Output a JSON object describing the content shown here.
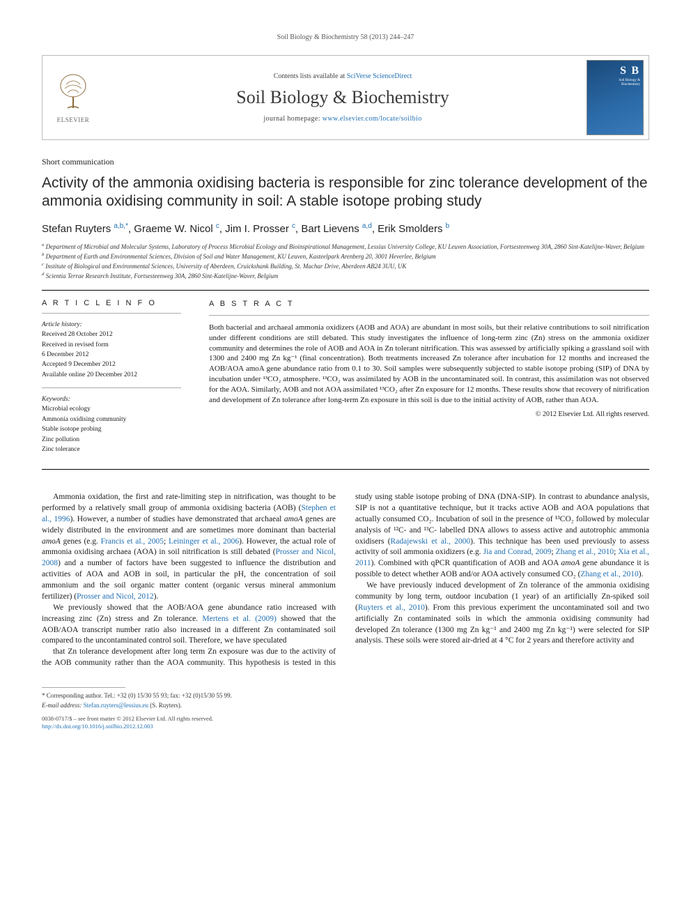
{
  "running_head": "Soil Biology & Biochemistry 58 (2013) 244–247",
  "masthead": {
    "publisher_label": "ELSEVIER",
    "contents_prefix": "Contents lists available at ",
    "contents_link": "SciVerse ScienceDirect",
    "journal_name": "Soil Biology & Biochemistry",
    "homepage_prefix": "journal homepage: ",
    "homepage_link": "www.elsevier.com/locate/soilbio",
    "cover": {
      "s1": "S",
      "s2": "B",
      "label1": "Soil Biology &",
      "label2": "Biochemistry"
    }
  },
  "section_label": "Short communication",
  "title": "Activity of the ammonia oxidising bacteria is responsible for zinc tolerance development of the ammonia oxidising community in soil: A stable isotope probing study",
  "authors_html": "Stefan Ruyters <sup class='aff'>a,b,*</sup>, Graeme W. Nicol <sup class='aff'>c</sup>, Jim I. Prosser <sup class='aff'>c</sup>, Bart Lievens <sup class='aff'>a,d</sup>, Erik Smolders <sup class='aff'>b</sup>",
  "affiliations": [
    "a Department of Microbial and Molecular Systems, Laboratory of Process Microbial Ecology and Bioinspirational Management, Lessius University College, KU Leuven Association, Fortsesteenweg 30A, 2860 Sint-Katelijne-Waver, Belgium",
    "b Department of Earth and Environmental Sciences, Division of Soil and Water Management, KU Leuven, Kasteelpark Arenberg 20, 3001 Heverlee, Belgium",
    "c Institute of Biological and Environmental Sciences, University of Aberdeen, Cruickshank Building, St. Machar Drive, Aberdeen AB24 3UU, UK",
    "d Scientia Terrae Research Institute, Fortsesteenweg 30A, 2860 Sint-Katelijne-Waver, Belgium"
  ],
  "article_info": {
    "heading": "A R T I C L E  I N F O",
    "history_label": "Article history:",
    "history": [
      "Received 28 October 2012",
      "Received in revised form",
      "6 December 2012",
      "Accepted 9 December 2012",
      "Available online 20 December 2012"
    ],
    "keywords_label": "Keywords:",
    "keywords": [
      "Microbial ecology",
      "Ammonia oxidising community",
      "Stable isotope probing",
      "Zinc pollution",
      "Zinc tolerance"
    ]
  },
  "abstract": {
    "heading": "A B S T R A C T",
    "text": "Both bacterial and archaeal ammonia oxidizers (AOB and AOA) are abundant in most soils, but their relative contributions to soil nitrification under different conditions are still debated. This study investigates the influence of long-term zinc (Zn) stress on the ammonia oxidizer community and determines the role of AOB and AOA in Zn tolerant nitrification. This was assessed by artificially spiking a grassland soil with 1300 and 2400 mg Zn kg⁻¹ (final concentration). Both treatments increased Zn tolerance after incubation for 12 months and increased the AOB/AOA amoA gene abundance ratio from 0.1 to 30. Soil samples were subsequently subjected to stable isotope probing (SIP) of DNA by incubation under ¹³CO₂ atmosphere. ¹³CO₂ was assimilated by AOB in the uncontaminated soil. In contrast, this assimilation was not observed for the AOA. Similarly, AOB and not AOA assimilated ¹³CO₂ after Zn exposure for 12 months. These results show that recovery of nitrification and development of Zn tolerance after long-term Zn exposure in this soil is due to the initial activity of AOB, rather than AOA.",
    "copyright": "© 2012 Elsevier Ltd. All rights reserved."
  },
  "body": {
    "p1": "Ammonia oxidation, the first and rate-limiting step in nitrification, was thought to be performed by a relatively small group of ammonia oxidising bacteria (AOB) (<span class='cite'>Stephen et al., 1996</span>). However, a number of studies have demonstrated that archaeal <i>amoA</i> genes are widely distributed in the environment and are sometimes more dominant than bacterial <i>amoA</i> genes (e.g. <span class='cite'>Francis et al., 2005</span>; <span class='cite'>Leininger et al., 2006</span>). However, the actual role of ammonia oxidising archaea (AOA) in soil nitrification is still debated (<span class='cite'>Prosser and Nicol, 2008</span>) and a number of factors have been suggested to influence the distribution and activities of AOA and AOB in soil, in particular the pH, the concentration of soil ammonium and the soil organic matter content (organic versus mineral ammonium fertilizer) (<span class='cite'>Prosser and Nicol, 2012</span>).",
    "p2": "We previously showed that the AOB/AOA gene abundance ratio increased with increasing zinc (Zn) stress and Zn tolerance. <span class='cite'>Mertens et al. (2009)</span> showed that the AOB/AOA transcript number ratio also increased in a different Zn contaminated soil compared to the uncontaminated control soil. Therefore, we have speculated",
    "p3": "that Zn tolerance development after long term Zn exposure was due to the activity of the AOB community rather than the AOA community. This hypothesis is tested in this study using stable isotope probing of DNA (DNA-SIP). In contrast to abundance analysis, SIP is not a quantitative technique, but it tracks active AOB and AOA populations that actually consumed CO₂. Incubation of soil in the presence of ¹³CO₂ followed by molecular analysis of ¹²C- and ¹³C- labelled DNA allows to assess active and autotrophic ammonia oxidisers (<span class='cite'>Radajewski et al., 2000</span>). This technique has been used previously to assess activity of soil ammonia oxidizers (e.g. <span class='cite'>Jia and Conrad, 2009</span>; <span class='cite'>Zhang et al., 2010</span>; <span class='cite'>Xia et al., 2011</span>). Combined with qPCR quantification of AOB and AOA <i>amoA</i> gene abundance it is possible to detect whether AOB and/or AOA actively consumed CO₂ (<span class='cite'>Zhang et al., 2010</span>).",
    "p4": "We have previously induced development of Zn tolerance of the ammonia oxidising community by long term, outdoor incubation (1 year) of an artificially Zn-spiked soil (<span class='cite'>Ruyters et al., 2010</span>). From this previous experiment the uncontaminated soil and two artificially Zn contaminated soils in which the ammonia oxidising community had developed Zn tolerance (1300 mg Zn kg⁻¹ and 2400 mg Zn kg⁻¹) were selected for SIP analysis. These soils were stored air-dried at 4 °C for 2 years and therefore activity and"
  },
  "footer": {
    "corr_label": "* Corresponding author. Tel.: +32 (0) 15/30 55 93; fax: +32 (0)15/30 55 99.",
    "email_label": "E-mail address: ",
    "email": "Stefan.ruyters@lessius.eu",
    "email_suffix": " (S. Ruyters).",
    "issn_line": "0038-0717/$ – see front matter © 2012 Elsevier Ltd. All rights reserved.",
    "doi_line": "http://dx.doi.org/10.1016/j.soilbio.2012.12.003"
  },
  "colors": {
    "link": "#1f6fb2",
    "text": "#1a1a1a",
    "border": "#bbbbbb",
    "cover_start": "#1a4a7a",
    "cover_end": "#3a7ab8"
  }
}
